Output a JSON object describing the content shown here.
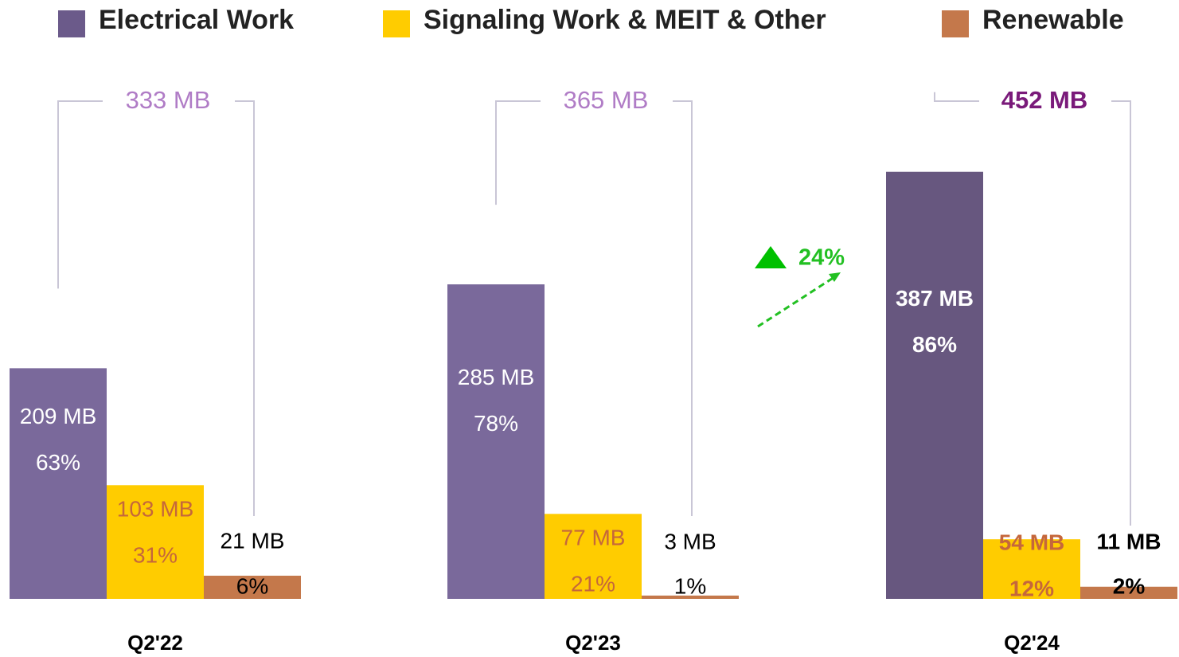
{
  "chart_data": {
    "type": "bar",
    "categories": [
      "Q2'22",
      "Q2'23",
      "Q2'24"
    ],
    "series": [
      {
        "name": "Electrical Work",
        "color": "#7a699b",
        "values": [
          209,
          285,
          387
        ],
        "value_labels": [
          "209 MB",
          "285 MB",
          "387 MB"
        ],
        "shares": [
          63,
          78,
          86
        ],
        "share_labels": [
          "63%",
          "78%",
          "86%"
        ]
      },
      {
        "name": "Signaling Work & MEIT & Other",
        "color": "#ffcc00",
        "values": [
          103,
          77,
          54
        ],
        "value_labels": [
          "103 MB",
          "77 MB",
          "54 MB"
        ],
        "shares": [
          31,
          21,
          12
        ],
        "share_labels": [
          "31%",
          "21%",
          "12%"
        ]
      },
      {
        "name": "Renewable",
        "color": "#c4784b",
        "values": [
          21,
          3,
          11
        ],
        "value_labels": [
          "21 MB",
          "3 MB",
          "11 MB"
        ],
        "shares": [
          6,
          1,
          2
        ],
        "share_labels": [
          "6%",
          "1%",
          "2%"
        ]
      }
    ],
    "totals": [
      333,
      365,
      452
    ],
    "total_labels": [
      "333 MB",
      "365 MB",
      "452 MB"
    ],
    "growth": 24,
    "growth_label": "24%",
    "ylim": [
      0,
      420
    ],
    "legend": "top"
  }
}
